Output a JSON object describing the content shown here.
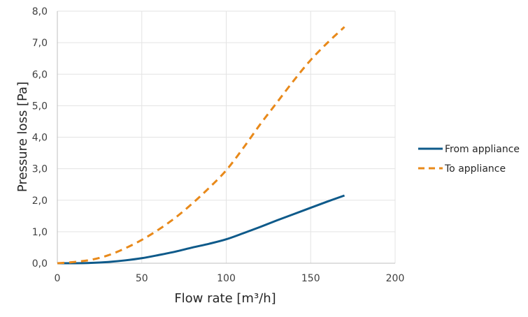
{
  "chart_data": {
    "type": "line",
    "xlabel": "Flow rate [m³/h]",
    "ylabel": "Pressure loss [Pa]",
    "xlim": [
      0,
      200
    ],
    "ylim": [
      0,
      8
    ],
    "x_ticks": [
      "0",
      "50",
      "100",
      "150",
      "200"
    ],
    "y_ticks": [
      "0,0",
      "1,0",
      "2,0",
      "3,0",
      "4,0",
      "5,0",
      "6,0",
      "7,0",
      "8,0"
    ],
    "grid": true,
    "legend_position": "right",
    "series": [
      {
        "name": "From appliance",
        "color": "#0e5a8a",
        "dash": "solid",
        "x": [
          0,
          10,
          20,
          30,
          40,
          50,
          60,
          70,
          80,
          90,
          100,
          110,
          120,
          130,
          140,
          150,
          160,
          170
        ],
        "y": [
          0.0,
          0.0,
          0.01,
          0.04,
          0.09,
          0.16,
          0.26,
          0.37,
          0.5,
          0.62,
          0.76,
          0.95,
          1.15,
          1.36,
          1.56,
          1.76,
          1.96,
          2.15
        ]
      },
      {
        "name": "To appliance",
        "color": "#e8891a",
        "dash": "dashed",
        "x": [
          0,
          10,
          20,
          30,
          40,
          50,
          60,
          70,
          80,
          90,
          100,
          110,
          120,
          130,
          140,
          150,
          160,
          170
        ],
        "y": [
          0.0,
          0.04,
          0.11,
          0.25,
          0.47,
          0.74,
          1.07,
          1.45,
          1.9,
          2.4,
          2.95,
          3.65,
          4.4,
          5.1,
          5.8,
          6.45,
          7.0,
          7.5
        ]
      }
    ]
  }
}
